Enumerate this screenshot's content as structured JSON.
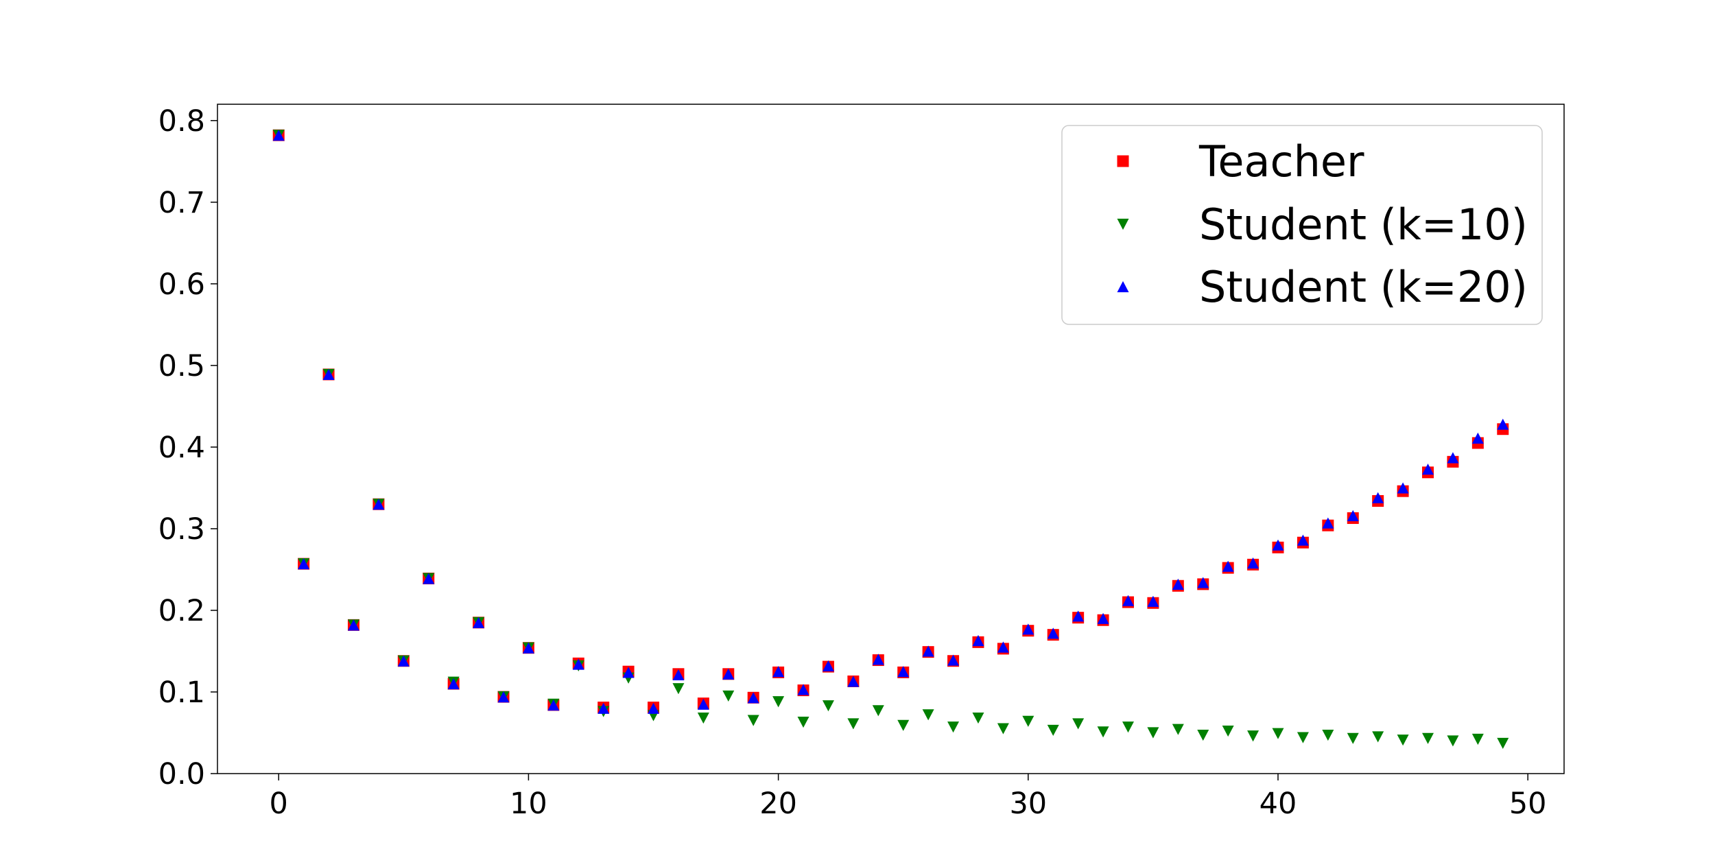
{
  "chart_data": {
    "type": "scatter",
    "title": "",
    "xlabel": "",
    "ylabel": "",
    "xlim": [
      -2.45,
      51.45
    ],
    "ylim": [
      0,
      0.82
    ],
    "x_ticks": [
      0,
      10,
      20,
      30,
      40,
      50
    ],
    "x_tick_labels": [
      "0",
      "10",
      "20",
      "30",
      "40",
      "50"
    ],
    "y_ticks": [
      0,
      0.1,
      0.2,
      0.3,
      0.4,
      0.5,
      0.6,
      0.7,
      0.8
    ],
    "y_tick_labels": [
      "0.0",
      "0.1",
      "0.2",
      "0.3",
      "0.4",
      "0.5",
      "0.6",
      "0.7",
      "0.8"
    ],
    "grid": false,
    "legend_position": "top-right",
    "x": [
      0,
      1,
      2,
      3,
      4,
      5,
      6,
      7,
      8,
      9,
      10,
      11,
      12,
      13,
      14,
      15,
      16,
      17,
      18,
      19,
      20,
      21,
      22,
      23,
      24,
      25,
      26,
      27,
      28,
      29,
      30,
      31,
      32,
      33,
      34,
      35,
      36,
      37,
      38,
      39,
      40,
      41,
      42,
      43,
      44,
      45,
      46,
      47,
      48,
      49
    ],
    "series": [
      {
        "name": "Teacher",
        "marker": "square",
        "color": "#ff0000",
        "values": [
          0.782,
          0.257,
          0.489,
          0.182,
          0.33,
          0.138,
          0.239,
          0.11,
          0.185,
          0.094,
          0.154,
          0.084,
          0.135,
          0.081,
          0.125,
          0.081,
          0.122,
          0.086,
          0.122,
          0.093,
          0.124,
          0.102,
          0.131,
          0.113,
          0.139,
          0.124,
          0.149,
          0.138,
          0.161,
          0.153,
          0.175,
          0.17,
          0.191,
          0.188,
          0.21,
          0.209,
          0.23,
          0.232,
          0.252,
          0.256,
          0.277,
          0.283,
          0.304,
          0.313,
          0.334,
          0.346,
          0.369,
          0.382,
          0.405,
          0.422
        ]
      },
      {
        "name": "Student (k=10)",
        "marker": "triangle-down",
        "color": "#008000",
        "values": [
          0.782,
          0.257,
          0.489,
          0.182,
          0.33,
          0.138,
          0.239,
          0.112,
          0.185,
          0.094,
          0.154,
          0.085,
          0.132,
          0.076,
          0.117,
          0.071,
          0.104,
          0.068,
          0.095,
          0.065,
          0.088,
          0.063,
          0.083,
          0.061,
          0.077,
          0.059,
          0.072,
          0.057,
          0.068,
          0.055,
          0.064,
          0.053,
          0.061,
          0.051,
          0.057,
          0.05,
          0.054,
          0.047,
          0.052,
          0.046,
          0.049,
          0.044,
          0.047,
          0.043,
          0.045,
          0.041,
          0.043,
          0.04,
          0.042,
          0.037
        ]
      },
      {
        "name": "Student (k=20)",
        "marker": "triangle-up",
        "color": "#0000ff",
        "values": [
          0.782,
          0.257,
          0.489,
          0.182,
          0.33,
          0.138,
          0.239,
          0.11,
          0.185,
          0.094,
          0.154,
          0.084,
          0.134,
          0.08,
          0.124,
          0.08,
          0.121,
          0.085,
          0.122,
          0.093,
          0.125,
          0.103,
          0.132,
          0.113,
          0.14,
          0.125,
          0.15,
          0.139,
          0.163,
          0.155,
          0.177,
          0.172,
          0.193,
          0.19,
          0.212,
          0.211,
          0.232,
          0.234,
          0.254,
          0.258,
          0.28,
          0.286,
          0.307,
          0.316,
          0.338,
          0.35,
          0.373,
          0.387,
          0.411,
          0.428
        ]
      }
    ]
  }
}
